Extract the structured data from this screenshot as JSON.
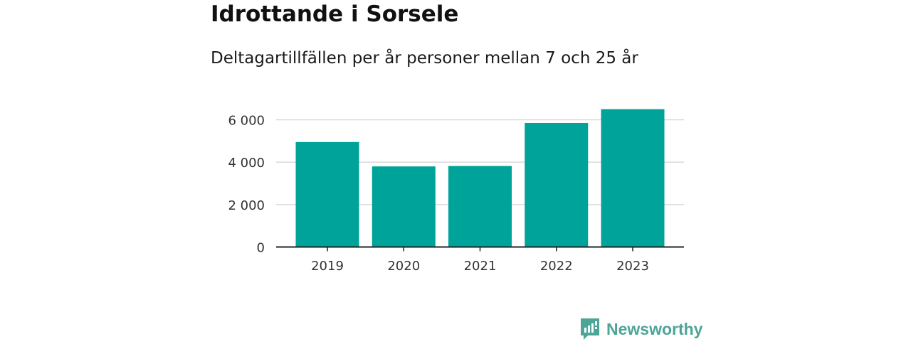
{
  "chart_data": {
    "type": "bar",
    "title": "Idrottande i Sorsele",
    "subtitle": "Deltagartillfällen per år personer mellan 7 och 25 år",
    "categories": [
      "2019",
      "2020",
      "2021",
      "2022",
      "2023"
    ],
    "values": [
      4950,
      3800,
      3820,
      5850,
      6500
    ],
    "ylim": [
      0,
      7000
    ],
    "yticks": [
      0,
      2000,
      4000,
      6000
    ],
    "ytick_labels": [
      "0",
      "2 000",
      "4 000",
      "6 000"
    ],
    "xlabel": "",
    "ylabel": "",
    "grid": true,
    "bar_color": "#00a39a"
  },
  "brand": {
    "name": "Newsworthy",
    "color": "#4da597",
    "icon": "bar-chart-logo-icon"
  }
}
